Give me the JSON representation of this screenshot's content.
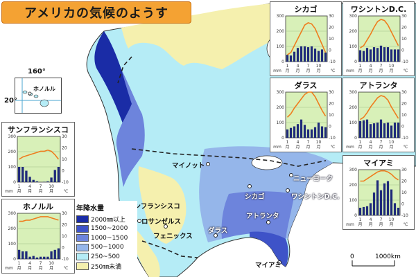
{
  "title": "アメリカの気候のようす",
  "legend": {
    "title": "年降水量",
    "items": [
      {
        "label": "2000㎜以上",
        "color": "#1a2ca6"
      },
      {
        "label": "1500~2000",
        "color": "#3e53c8"
      },
      {
        "label": "1000~1500",
        "color": "#6d84dc"
      },
      {
        "label": "500~1000",
        "color": "#95b6ea"
      },
      {
        "label": "250~500",
        "color": "#b5ecf6"
      },
      {
        "label": "250㎜未満",
        "color": "#f5f0ae"
      }
    ]
  },
  "inset": {
    "lon_label": "160°",
    "lat_label": "20°",
    "city": "ホノルル"
  },
  "cities": [
    {
      "id": "minot",
      "name": "マイノット"
    },
    {
      "id": "newyork",
      "name": "ニューヨーク"
    },
    {
      "id": "chicago",
      "name": "シカゴ"
    },
    {
      "id": "washington",
      "name": "ワシントンD.C."
    },
    {
      "id": "sanfrancisco",
      "name": "サンフランシスコ"
    },
    {
      "id": "losangeles",
      "name": "ロサンゼルス"
    },
    {
      "id": "phoenix",
      "name": "フェニックス"
    },
    {
      "id": "atlanta",
      "name": "アトランタ"
    },
    {
      "id": "dallas",
      "name": "ダラス"
    },
    {
      "id": "miami",
      "name": "マイアミ"
    }
  ],
  "scale": {
    "zero": "0",
    "distance": "1000km"
  },
  "axes": {
    "precip_ticks": [
      "300",
      "200",
      "100",
      "0"
    ],
    "temp_ticks": [
      "30",
      "20",
      "10",
      "0",
      "-10"
    ],
    "month_ticks": [
      "1",
      "4",
      "7",
      "10"
    ],
    "month_unit": "月",
    "precip_unit": "mm",
    "temp_unit": "℃"
  },
  "colors": {
    "bar": "#1f2a7a",
    "temp_line": "#ef7d1e",
    "chart_bg": "#d8f0b8",
    "ocean": "#ffffff",
    "land_dry": "#f5f0ae"
  },
  "chart_data": [
    {
      "type": "bar",
      "title": "シカゴ",
      "categories": [
        "1",
        "2",
        "3",
        "4",
        "5",
        "6",
        "7",
        "8",
        "9",
        "10",
        "11",
        "12"
      ],
      "series": [
        {
          "values": [
            45,
            40,
            65,
            90,
            100,
            100,
            95,
            100,
            85,
            70,
            80,
            60
          ]
        },
        {
          "values": [
            -4,
            -2,
            4,
            10,
            16,
            22,
            24,
            23,
            19,
            12,
            5,
            -2
          ]
        }
      ],
      "ylim": [
        0,
        300
      ],
      "y2lim": [
        -10,
        30
      ]
    },
    {
      "type": "bar",
      "title": "ワシントンD.C.",
      "categories": [
        "1",
        "2",
        "3",
        "4",
        "5",
        "6",
        "7",
        "8",
        "9",
        "10",
        "11",
        "12"
      ],
      "series": [
        {
          "values": [
            75,
            70,
            90,
            80,
            95,
            90,
            105,
            95,
            95,
            80,
            80,
            80
          ]
        },
        {
          "values": [
            2,
            4,
            9,
            14,
            20,
            25,
            27,
            26,
            22,
            16,
            10,
            4
          ]
        }
      ],
      "ylim": [
        0,
        300
      ],
      "y2lim": [
        -10,
        30
      ]
    },
    {
      "type": "bar",
      "title": "ダラス",
      "categories": [
        "1",
        "2",
        "3",
        "4",
        "5",
        "6",
        "7",
        "8",
        "9",
        "10",
        "11",
        "12"
      ],
      "series": [
        {
          "values": [
            55,
            65,
            75,
            90,
            120,
            85,
            55,
            55,
            70,
            100,
            75,
            70
          ]
        },
        {
          "values": [
            8,
            11,
            16,
            20,
            24,
            28,
            30,
            30,
            26,
            20,
            14,
            9
          ]
        }
      ],
      "ylim": [
        0,
        300
      ],
      "y2lim": [
        -10,
        30
      ]
    },
    {
      "type": "bar",
      "title": "アトランタ",
      "categories": [
        "1",
        "2",
        "3",
        "4",
        "5",
        "6",
        "7",
        "8",
        "9",
        "10",
        "11",
        "12"
      ],
      "series": [
        {
          "values": [
            110,
            115,
            120,
            90,
            95,
            100,
            120,
            95,
            100,
            80,
            100,
            100
          ]
        },
        {
          "values": [
            6,
            8,
            12,
            17,
            21,
            25,
            27,
            26,
            23,
            17,
            12,
            7
          ]
        }
      ],
      "ylim": [
        0,
        300
      ],
      "y2lim": [
        -10,
        30
      ]
    },
    {
      "type": "bar",
      "title": "マイアミ",
      "categories": [
        "1",
        "2",
        "3",
        "4",
        "5",
        "6",
        "7",
        "8",
        "9",
        "10",
        "11",
        "12"
      ],
      "series": [
        {
          "values": [
            50,
            55,
            60,
            80,
            150,
            230,
            165,
            210,
            225,
            170,
            80,
            50
          ]
        },
        {
          "values": [
            20,
            20,
            22,
            24,
            26,
            28,
            29,
            29,
            28,
            26,
            23,
            21
          ]
        }
      ],
      "ylim": [
        0,
        300
      ],
      "y2lim": [
        -10,
        30
      ]
    },
    {
      "type": "bar",
      "title": "サンフランシスコ",
      "categories": [
        "1",
        "2",
        "3",
        "4",
        "5",
        "6",
        "7",
        "8",
        "9",
        "10",
        "11",
        "12"
      ],
      "series": [
        {
          "values": [
            100,
            100,
            75,
            35,
            15,
            5,
            0,
            2,
            5,
            30,
            80,
            100
          ]
        },
        {
          "values": [
            10,
            12,
            13,
            14,
            15,
            16,
            17,
            17,
            18,
            17,
            14,
            10
          ]
        }
      ],
      "ylim": [
        0,
        300
      ],
      "y2lim": [
        -10,
        30
      ]
    },
    {
      "type": "bar",
      "title": "ホノルル",
      "categories": [
        "1",
        "2",
        "3",
        "4",
        "5",
        "6",
        "7",
        "8",
        "9",
        "10",
        "11",
        "12"
      ],
      "series": [
        {
          "values": [
            60,
            50,
            50,
            15,
            20,
            10,
            15,
            15,
            15,
            50,
            60,
            70
          ]
        },
        {
          "values": [
            23,
            23,
            24,
            24,
            25,
            26,
            27,
            27,
            27,
            26,
            25,
            24
          ]
        }
      ],
      "ylim": [
        0,
        300
      ],
      "y2lim": [
        -10,
        30
      ]
    }
  ]
}
